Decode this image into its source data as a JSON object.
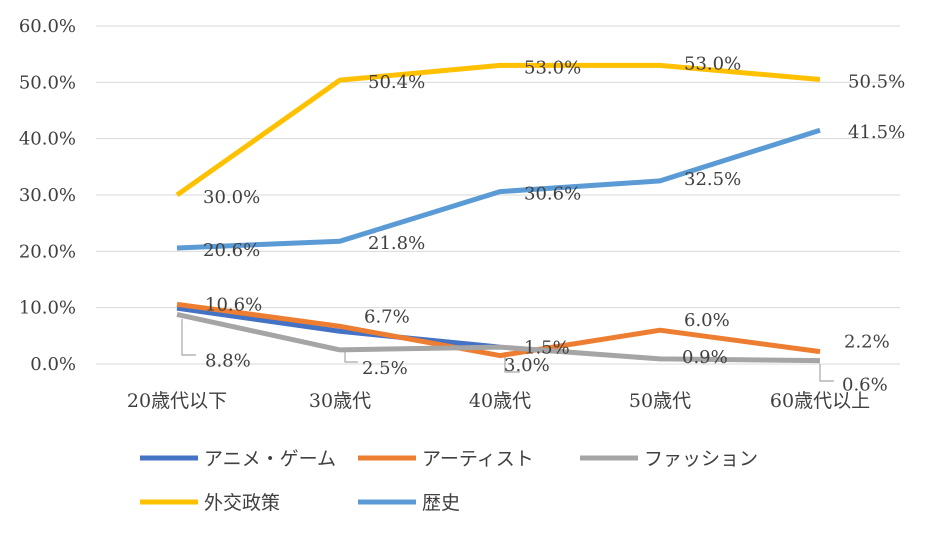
{
  "chart_data": {
    "type": "line",
    "title": "",
    "xlabel": "",
    "ylabel": "",
    "categories": [
      "20歳代以下",
      "30歳代",
      "40歳代",
      "50歳代",
      "60歳代以上"
    ],
    "ylim": [
      0,
      60
    ],
    "yticks": [
      "0.0%",
      "10.0%",
      "20.0%",
      "30.0%",
      "40.0%",
      "50.0%",
      "60.0%"
    ],
    "grid": true,
    "legend_position": "bottom",
    "series": [
      {
        "name": "アニメ・ゲーム",
        "color": "#4472C4",
        "values": [
          9.9,
          5.8,
          3.0,
          null,
          null
        ],
        "labels": [
          "",
          "",
          "3.0%",
          "",
          ""
        ]
      },
      {
        "name": "アーティスト",
        "color": "#ED7D31",
        "values": [
          10.6,
          6.7,
          1.5,
          6.0,
          2.2
        ],
        "labels": [
          "10.6%",
          "6.7%",
          "1.5%",
          "6.0%",
          "2.2%"
        ]
      },
      {
        "name": "ファッション",
        "color": "#A5A5A5",
        "values": [
          8.8,
          2.5,
          3.0,
          0.9,
          0.6
        ],
        "labels": [
          "8.8%",
          "2.5%",
          "",
          "0.9%",
          "0.6%"
        ]
      },
      {
        "name": "外交政策",
        "color": "#FFC000",
        "values": [
          30.0,
          50.4,
          53.0,
          53.0,
          50.5
        ],
        "labels": [
          "30.0%",
          "50.4%",
          "53.0%",
          "53.0%",
          "50.5%"
        ]
      },
      {
        "name": "歴史",
        "color": "#5B9BD5",
        "values": [
          20.6,
          21.8,
          30.6,
          32.5,
          41.5
        ],
        "labels": [
          "20.6%",
          "21.8%",
          "30.6%",
          "32.5%",
          "41.5%"
        ]
      }
    ]
  }
}
